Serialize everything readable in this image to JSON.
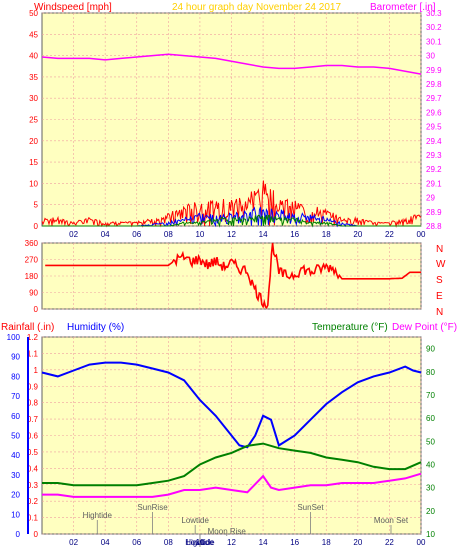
{
  "colors": {
    "background": "#ffffff",
    "plot_bg": "#ffffc0",
    "grid": "#f0a0a0",
    "frame": "#606060",
    "windspeed": "#ff0000",
    "windgust": "#0000ff",
    "windavg": "#008000",
    "barometer": "#ff00ff",
    "title": "#ffd000",
    "humidity": "#0000ff",
    "temperature": "#008000",
    "dewpoint": "#ff00ff",
    "rain": "#ff0000",
    "direction": "#ff0000",
    "tide": "#808080"
  },
  "header": {
    "left_label": "Windspeed [mph]",
    "title": "24 hour graph day   November 24 2017",
    "right_label": "Barometer [.in]"
  },
  "direction_panel": {
    "compass": [
      "N",
      "W",
      "S",
      "E",
      "N"
    ]
  },
  "bottom_header": {
    "rain_label": "Rainfall (.in)",
    "humidity_label": "Humidity (%)",
    "temperature_label": "Temperature (°F)",
    "dewpoint_label": "Dew Point (°F)"
  },
  "x_ticks": [
    "02",
    "04",
    "06",
    "08",
    "10",
    "12",
    "14",
    "16",
    "18",
    "20",
    "22",
    "00"
  ],
  "chart_data": [
    {
      "type": "line",
      "name": "wind-barometer",
      "xlim": [
        0,
        24
      ],
      "left_axis": {
        "ticks": [
          0,
          5,
          10,
          15,
          20,
          25,
          30,
          35,
          40,
          45,
          50
        ],
        "range": [
          0,
          50
        ]
      },
      "right_axis": {
        "ticks": [
          "28.8",
          "28.9",
          "29",
          "29.1",
          "29.2",
          "29.3",
          "29.4",
          "29.5",
          "29.6",
          "29.7",
          "29.8",
          "29.9",
          "30",
          "30.1",
          "30.2",
          "30.3"
        ],
        "range": [
          28.8,
          30.3
        ]
      },
      "series": [
        {
          "role": "barometer",
          "axis": "right",
          "x": [
            0,
            1,
            2,
            3,
            4,
            5,
            6,
            7,
            8,
            9,
            10,
            11,
            12,
            13,
            14,
            15,
            16,
            17,
            18,
            19,
            20,
            21,
            22,
            23,
            24
          ],
          "values": [
            29.99,
            29.98,
            29.98,
            29.98,
            29.97,
            29.98,
            29.99,
            30.0,
            30.01,
            30.0,
            29.99,
            29.98,
            29.96,
            29.94,
            29.92,
            29.91,
            29.91,
            29.92,
            29.93,
            29.93,
            29.92,
            29.92,
            29.91,
            29.89,
            29.87
          ]
        },
        {
          "role": "windspeed-envelope",
          "axis": "left",
          "x": [
            0,
            1,
            2,
            3,
            4,
            5,
            6,
            7,
            8,
            9,
            10,
            11,
            12,
            13,
            14,
            15,
            16,
            17,
            18,
            19,
            20,
            21,
            22,
            23,
            24
          ],
          "values": [
            2,
            2,
            1,
            2,
            1,
            1,
            1,
            2,
            3,
            5,
            6,
            6,
            7,
            8,
            11,
            7,
            6,
            5,
            4,
            2,
            2,
            1,
            1,
            2,
            3
          ]
        },
        {
          "role": "gust-envelope",
          "axis": "left",
          "x": [
            0,
            2,
            4,
            6,
            8,
            9,
            10,
            11,
            12,
            13,
            14,
            15,
            16,
            17,
            18,
            19,
            20,
            22,
            24
          ],
          "values": [
            0,
            0,
            0,
            0,
            1,
            2,
            3,
            3,
            3,
            4,
            5,
            4,
            3,
            3,
            2,
            1,
            0,
            0,
            0
          ]
        },
        {
          "role": "average-envelope",
          "axis": "left",
          "x": [
            0,
            2,
            4,
            6,
            8,
            9,
            10,
            11,
            12,
            13,
            14,
            15,
            16,
            17,
            18,
            19,
            20,
            22,
            24
          ],
          "values": [
            0,
            0,
            0,
            0,
            0,
            1,
            1,
            2,
            2,
            2,
            3,
            2,
            2,
            1,
            1,
            0,
            0,
            0,
            0
          ]
        }
      ]
    },
    {
      "type": "line",
      "name": "wind-direction",
      "xlim": [
        0,
        24
      ],
      "left_axis": {
        "ticks": [
          0,
          90,
          180,
          270,
          360
        ],
        "range": [
          0,
          360
        ]
      },
      "series": [
        {
          "role": "direction",
          "x": [
            0.2,
            1,
            2,
            3,
            4,
            5,
            6,
            7,
            8,
            8.5,
            9,
            9.5,
            10,
            10.5,
            11,
            11.5,
            12,
            12.5,
            13,
            13.3,
            13.6,
            14,
            14.3,
            14.6,
            15,
            15.5,
            16,
            16.5,
            17,
            17.5,
            18,
            18.5,
            19,
            20,
            21,
            22,
            22.8,
            23.3,
            24
          ],
          "values": [
            238,
            238,
            238,
            238,
            238,
            238,
            238,
            238,
            238,
            270,
            280,
            260,
            270,
            240,
            260,
            230,
            250,
            220,
            210,
            140,
            90,
            40,
            30,
            360,
            200,
            180,
            190,
            220,
            200,
            215,
            230,
            220,
            165,
            165,
            165,
            165,
            168,
            200,
            200
          ]
        }
      ]
    },
    {
      "type": "line",
      "name": "humidity-temperature",
      "xlim": [
        0,
        24
      ],
      "left_axis": {
        "ticks": [
          "0",
          "0.1",
          "0.2",
          "0.3",
          "0.4",
          "0.5",
          "0.6",
          "0.7",
          "0.8",
          "0.9",
          "1",
          "1.1",
          "1.2"
        ],
        "range": [
          0,
          1.2
        ]
      },
      "humidity_axis": {
        "ticks": [
          0,
          10,
          20,
          30,
          40,
          50,
          60,
          70,
          80,
          90,
          100
        ],
        "range": [
          0,
          100
        ]
      },
      "right_axis": {
        "ticks": [
          10,
          20,
          30,
          40,
          50,
          60,
          70,
          80,
          90
        ],
        "range": [
          10,
          95
        ]
      },
      "series": [
        {
          "role": "humidity",
          "x": [
            0,
            1,
            2,
            3,
            4,
            5,
            6,
            7,
            8,
            9,
            10,
            11,
            12,
            12.5,
            13,
            13.5,
            14,
            14.5,
            15,
            16,
            17,
            18,
            19,
            20,
            21,
            22,
            23,
            23.5,
            24
          ],
          "values": [
            82,
            80,
            83,
            86,
            87,
            87,
            86,
            84,
            82,
            78,
            68,
            60,
            50,
            45,
            44,
            50,
            60,
            58,
            45,
            50,
            58,
            66,
            72,
            77,
            80,
            82,
            85,
            83,
            82
          ]
        },
        {
          "role": "temperature",
          "x": [
            0,
            1,
            2,
            3,
            4,
            5,
            6,
            7,
            8,
            9,
            10,
            11,
            12,
            13,
            14,
            15,
            16,
            17,
            18,
            19,
            20,
            21,
            22,
            23,
            24
          ],
          "values": [
            32,
            32,
            31,
            31,
            31,
            31,
            31,
            32,
            33,
            35,
            40,
            43,
            45,
            48,
            49,
            47,
            46,
            45,
            43,
            42,
            41,
            39,
            38,
            38,
            41
          ]
        },
        {
          "role": "dewpoint",
          "x": [
            0,
            1,
            2,
            3,
            4,
            5,
            6,
            7,
            8,
            9,
            10,
            11,
            12,
            13,
            14,
            14.5,
            15,
            16,
            17,
            18,
            19,
            20,
            21,
            22,
            23,
            24
          ],
          "values": [
            27,
            27,
            26,
            26,
            26,
            26,
            26,
            26,
            27,
            29,
            29,
            30,
            29,
            28,
            35,
            30,
            29,
            30,
            31,
            31,
            32,
            32,
            32,
            33,
            34,
            36
          ]
        }
      ]
    }
  ],
  "tide_labels": [
    {
      "text": "Hightide",
      "x": 3.5,
      "row": 0
    },
    {
      "text": "SunRise",
      "x": 7.0,
      "row": 1
    },
    {
      "text": "Lowtide",
      "x": 9.7,
      "row": 2
    },
    {
      "text": "Moon Rise",
      "x": 11.7,
      "row": 3
    },
    {
      "text": "Hightide",
      "x": 10.0,
      "row": 4
    },
    {
      "text": "Lowtide",
      "x": 10.0,
      "row": 4
    },
    {
      "text": "SunSet",
      "x": 17.0,
      "row": 1
    },
    {
      "text": "Moon Set",
      "x": 22.1,
      "row": 2
    }
  ]
}
